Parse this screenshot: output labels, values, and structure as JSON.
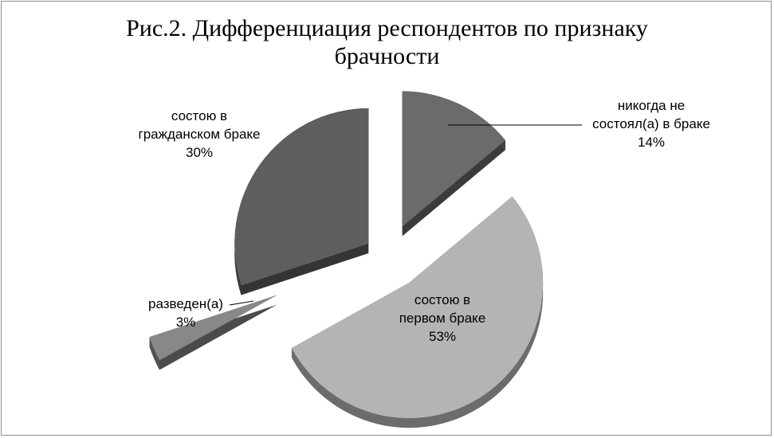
{
  "chart_data": {
    "type": "pie",
    "title": "Рис.2. Дифференциация респондентов по признаку брачности",
    "title_lines": [
      "Рис.2. Дифференциация респондентов по признаку",
      "брачности"
    ],
    "style": "3d-exploded",
    "slices": [
      {
        "label": "никогда не состоял(а) в браке",
        "label_lines": [
          "никогда не",
          "состоял(а) в браке"
        ],
        "value": 14,
        "value_label": "14%",
        "color": "#6b6b6b"
      },
      {
        "label": "состою в первом браке",
        "label_lines": [
          "состою в",
          "первом браке"
        ],
        "value": 53,
        "value_label": "53%",
        "color": "#b4b4b4"
      },
      {
        "label": "разведен(а)",
        "label_lines": [
          "разведен(а)"
        ],
        "value": 3,
        "value_label": "3%",
        "color": "#888888"
      },
      {
        "label": "состою в гражданском браке",
        "label_lines": [
          "состою в",
          "гражданском браке"
        ],
        "value": 30,
        "value_label": "30%",
        "color": "#5e5e5e"
      }
    ]
  }
}
